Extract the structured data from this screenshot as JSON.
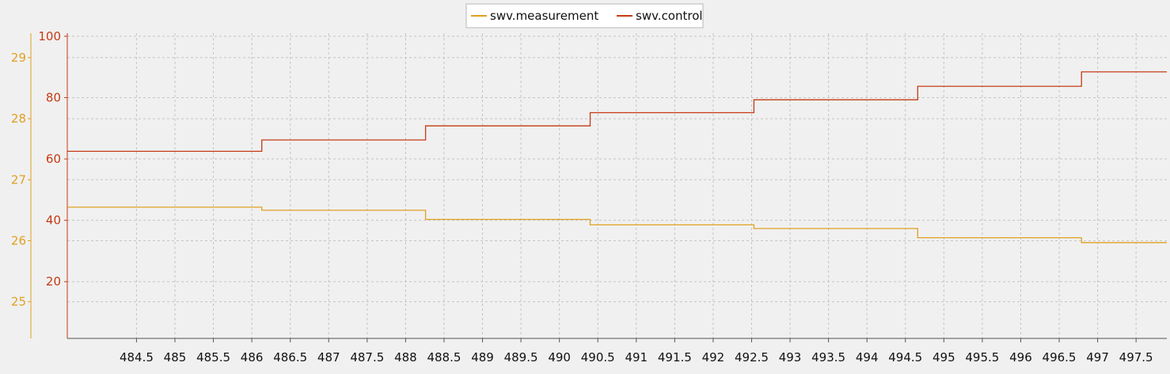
{
  "legend": [
    {
      "label": "swv.measurement",
      "color": "#e0a020"
    },
    {
      "label": "swv.control",
      "color": "#c43a14"
    }
  ],
  "chart_data": {
    "type": "line",
    "step": true,
    "legend_position": "top-center",
    "grid": true,
    "x": {
      "range": [
        483.6,
        497.9
      ],
      "ticks": [
        484.5,
        485,
        485.5,
        486,
        486.5,
        487,
        487.5,
        488,
        488.5,
        489,
        489.5,
        490,
        490.5,
        491,
        491.5,
        492,
        492.5,
        493,
        493.5,
        494,
        494.5,
        495,
        495.5,
        496,
        496.5,
        497,
        497.5
      ],
      "tick_labels": [
        "484.5",
        "485",
        "485.5",
        "486",
        "486.5",
        "487",
        "487.5",
        "488",
        "488.5",
        "489",
        "489.5",
        "490",
        "490.5",
        "491",
        "491.5",
        "492",
        "492.5",
        "493",
        "493.5",
        "494",
        "494.5",
        "495",
        "495.5",
        "496",
        "496.5",
        "497",
        "497.5"
      ]
    },
    "y_axes": [
      {
        "id": "left-outer",
        "color": "#e0a020",
        "range": [
          24.4,
          29.4
        ],
        "ticks": [
          25,
          26,
          27,
          28,
          29
        ],
        "tick_labels": [
          "25",
          "26",
          "27",
          "28",
          "29"
        ]
      },
      {
        "id": "left-inner",
        "color": "#c43a14",
        "range": [
          1.5,
          101
        ],
        "ticks": [
          20,
          40,
          60,
          80,
          100
        ],
        "tick_labels": [
          "20",
          "40",
          "60",
          "80",
          "100"
        ]
      }
    ],
    "series": [
      {
        "name": "swv.measurement",
        "color": "#e0a020",
        "axis": "left-outer",
        "x": [
          483.6,
          486.13,
          488.26,
          490.4,
          492.53,
          494.66,
          496.79,
          497.9
        ],
        "y": [
          26.55,
          26.5,
          26.35,
          26.26,
          26.2,
          26.05,
          25.97,
          25.97
        ]
      },
      {
        "name": "swv.control",
        "color": "#c43a14",
        "axis": "left-inner",
        "x": [
          483.6,
          486.13,
          488.26,
          490.4,
          492.53,
          494.66,
          496.79,
          497.9
        ],
        "y": [
          62.5,
          66.2,
          70.8,
          75.1,
          79.3,
          83.7,
          88.4,
          88.4
        ]
      }
    ]
  }
}
